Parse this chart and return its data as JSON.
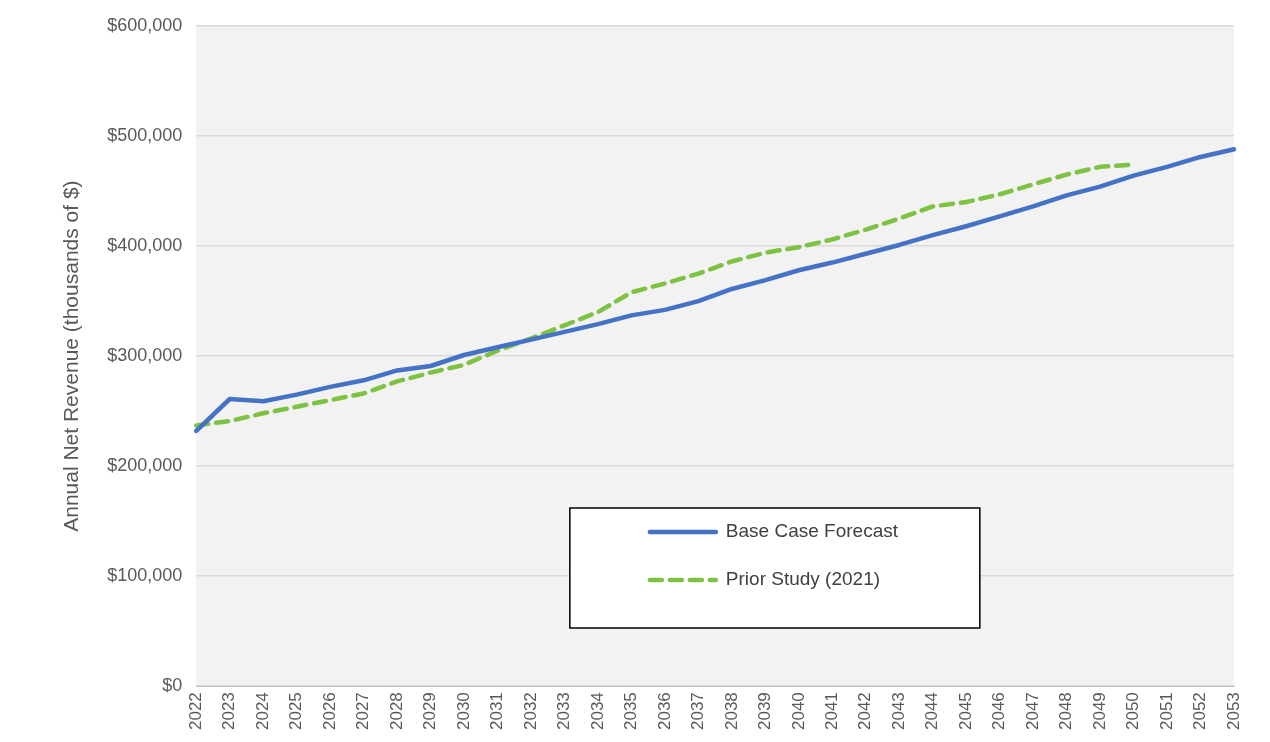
{
  "chart_data": {
    "type": "line",
    "ylabel": "Annual Net Revenue (thousands of $)",
    "categories": [
      "2022",
      "2023",
      "2024",
      "2025",
      "2026",
      "2027",
      "2028",
      "2029",
      "2030",
      "2031",
      "2032",
      "2033",
      "2034",
      "2035",
      "2036",
      "2037",
      "2038",
      "2039",
      "2040",
      "2041",
      "2042",
      "2043",
      "2044",
      "2045",
      "2046",
      "2047",
      "2048",
      "2049",
      "2050",
      "2051",
      "2052",
      "2053"
    ],
    "series": [
      {
        "name": "Base Case Forecast",
        "color": "#4472c4",
        "line_style": "solid",
        "values": [
          232000,
          261000,
          259000,
          265000,
          272000,
          278000,
          287000,
          291000,
          301000,
          308000,
          315000,
          322000,
          329000,
          337000,
          342000,
          350000,
          361000,
          369000,
          378000,
          385000,
          393000,
          401000,
          410000,
          418000,
          427000,
          436000,
          446000,
          454000,
          464000,
          472000,
          481000,
          488000
        ]
      },
      {
        "name": "Prior Study (2021)",
        "color": "#7dc242",
        "line_style": "dashed",
        "values": [
          237000,
          241000,
          248000,
          254000,
          260000,
          266000,
          277000,
          285000,
          292000,
          305000,
          316000,
          328000,
          340000,
          358000,
          366000,
          375000,
          386000,
          394000,
          399000,
          406000,
          415000,
          425000,
          436000,
          440000,
          447000,
          456000,
          465000,
          472000,
          474000,
          null,
          null,
          null
        ]
      }
    ],
    "ylim": [
      0,
      600000
    ],
    "yticks": [
      {
        "value": 0,
        "label": "$0"
      },
      {
        "value": 100000,
        "label": "$100,000"
      },
      {
        "value": 200000,
        "label": "$200,000"
      },
      {
        "value": 300000,
        "label": "$300,000"
      },
      {
        "value": 400000,
        "label": "$400,000"
      },
      {
        "value": 500000,
        "label": "$500,000"
      },
      {
        "value": 600000,
        "label": "$600,000"
      }
    ],
    "grid": "y",
    "legend": "bottom",
    "marker": "none"
  }
}
